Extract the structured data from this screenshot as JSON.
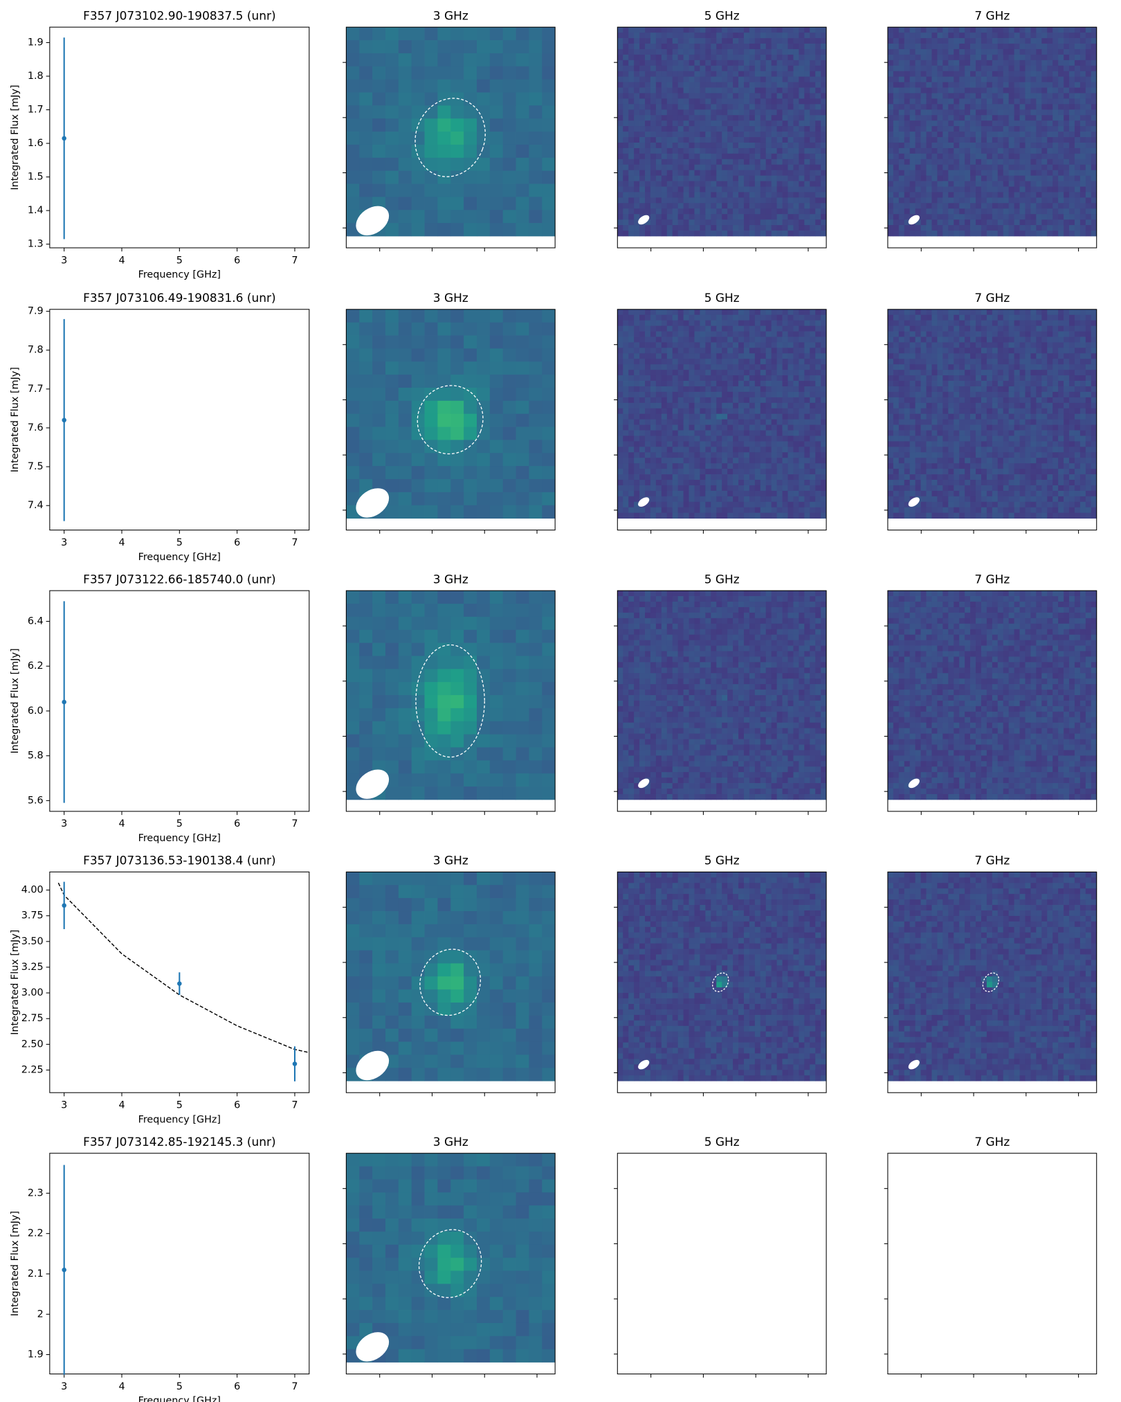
{
  "chart_data": [
    {
      "type": "errorbar",
      "title": "F357 J073102.90-190837.5 (unr)",
      "x_label": "Frequency [GHz]",
      "y_label": "Integrated Flux [mJy]",
      "x": [
        3
      ],
      "values": [
        1.615
      ],
      "errors": [
        0.3
      ],
      "color": "#1f77b4",
      "xlim": [
        2.75,
        7.25
      ],
      "xticks": [
        3,
        4,
        5,
        6,
        7
      ],
      "ylim": [
        1.289,
        1.946
      ],
      "yticks": [
        1.3,
        1.4,
        1.5,
        1.6,
        1.7,
        1.8,
        1.9
      ]
    },
    {
      "type": "errorbar",
      "title": "F357 J073106.49-190831.6 (unr)",
      "x_label": "Frequency [GHz]",
      "y_label": "Integrated Flux [mJy]",
      "x": [
        3
      ],
      "values": [
        7.62
      ],
      "errors": [
        0.26
      ],
      "color": "#1f77b4",
      "xlim": [
        2.75,
        7.25
      ],
      "xticks": [
        3,
        4,
        5,
        6,
        7
      ],
      "ylim": [
        7.337,
        7.905
      ],
      "yticks": [
        7.4,
        7.5,
        7.6,
        7.7,
        7.8,
        7.9
      ]
    },
    {
      "type": "errorbar",
      "title": "F357 J073122.66-185740.0 (unr)",
      "x_label": "Frequency [GHz]",
      "y_label": "Integrated Flux [mJy]",
      "x": [
        3
      ],
      "values": [
        6.04
      ],
      "errors": [
        0.45
      ],
      "color": "#1f77b4",
      "xlim": [
        2.75,
        7.25
      ],
      "xticks": [
        3,
        4,
        5,
        6,
        7
      ],
      "ylim": [
        5.552,
        6.537
      ],
      "yticks": [
        {
          "value": 5.6,
          "label": "5.6"
        },
        {
          "value": 5.8,
          "label": "5.8"
        },
        {
          "value": 6,
          "label": "6.0"
        },
        {
          "value": 6.2,
          "label": "6.2"
        },
        {
          "value": 6.4,
          "label": "6.4"
        }
      ]
    },
    {
      "type": "errorbar",
      "title": "F357 J073136.53-190138.4 (unr)",
      "x_label": "Frequency [GHz]",
      "y_label": "Integrated Flux [mJy]",
      "x": [
        3,
        5,
        7
      ],
      "values": [
        3.85,
        3.09,
        2.31
      ],
      "errors": [
        0.23,
        0.11,
        0.17
      ],
      "color": "#1f77b4",
      "fit": {
        "x": [
          2.9,
          3,
          4,
          5,
          6,
          7,
          7.25
        ],
        "values": [
          4.07,
          3.95,
          3.38,
          2.98,
          2.68,
          2.45,
          2.42
        ],
        "color": "#000000"
      },
      "xlim": [
        2.75,
        7.25
      ],
      "xticks": [
        3,
        4,
        5,
        6,
        7
      ],
      "ylim": [
        2.03,
        4.176
      ],
      "yticks": [
        {
          "value": 2.25,
          "label": "2.25"
        },
        {
          "value": 2.5,
          "label": "2.50"
        },
        {
          "value": 2.75,
          "label": "2.75"
        },
        {
          "value": 3,
          "label": "3.00"
        },
        {
          "value": 3.25,
          "label": "3.25"
        },
        {
          "value": 3.5,
          "label": "3.50"
        },
        {
          "value": 3.75,
          "label": "3.75"
        },
        {
          "value": 4,
          "label": "4.00"
        }
      ]
    },
    {
      "type": "errorbar",
      "title": "F357 J073142.85-192145.3 (unr)",
      "x_label": "Frequency [GHz]",
      "y_label": "Integrated Flux [mJy]",
      "x": [
        3
      ],
      "values": [
        2.11
      ],
      "errors": [
        0.26
      ],
      "color": "#1f77b4",
      "xlim": [
        2.75,
        7.25
      ],
      "xticks": [
        3,
        4,
        5,
        6,
        7
      ],
      "ylim": [
        1.852,
        2.399
      ],
      "yticks": [
        1.9,
        2.0,
        2.1,
        2.2,
        2.3
      ]
    }
  ],
  "image_titles": [
    [
      "3 GHz",
      "5 GHz",
      "7 GHz"
    ],
    [
      "3 GHz",
      "5 GHz",
      "7 GHz"
    ],
    [
      "3 GHz",
      "5 GHz",
      "7 GHz"
    ],
    [
      "3 GHz",
      "5 GHz",
      "7 GHz"
    ],
    [
      "3 GHz",
      "5 GHz",
      "7 GHz"
    ]
  ]
}
